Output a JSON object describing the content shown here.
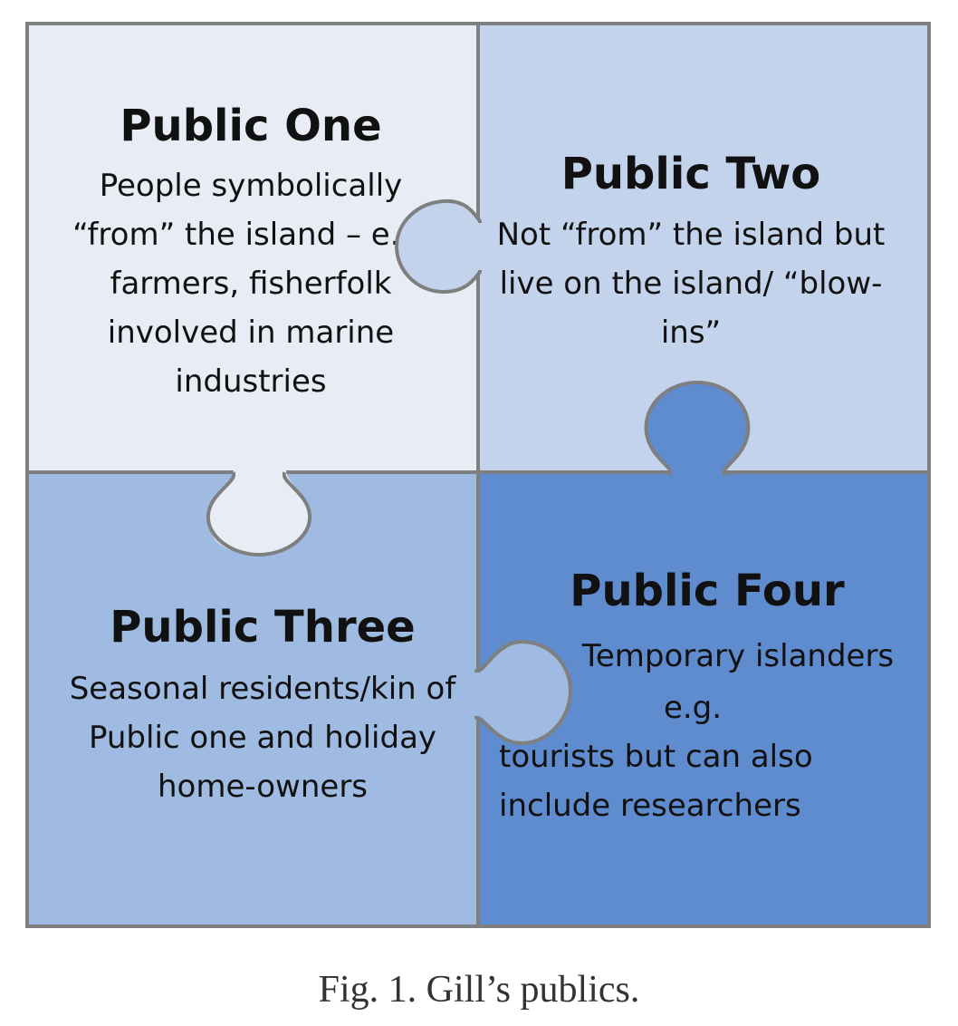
{
  "colors": {
    "public_one": "#e8edf5",
    "public_two": "#c3d3eb",
    "public_three": "#9fbbe1",
    "public_four": "#5f8bcf",
    "border": "#7f7f7f"
  },
  "pieces": {
    "one": {
      "title": "Public One",
      "lines": [
        "People symbolically",
        "“from” the island – e.g.",
        "farmers, fisherfolk",
        "involved in marine",
        "industries"
      ]
    },
    "two": {
      "title": "Public Two",
      "lines": [
        "Not “from” the island but",
        "live on the island/ “blow-",
        "ins”"
      ]
    },
    "three": {
      "title": "Public Three",
      "lines": [
        "Seasonal residents/kin of",
        "Public one and holiday",
        "home-owners"
      ]
    },
    "four": {
      "title": "Public Four",
      "lines": [
        "Temporary islanders",
        "e.g.",
        "tourists but can also",
        "include researchers"
      ]
    }
  },
  "caption": "Fig. 1.  Gill’s publics."
}
